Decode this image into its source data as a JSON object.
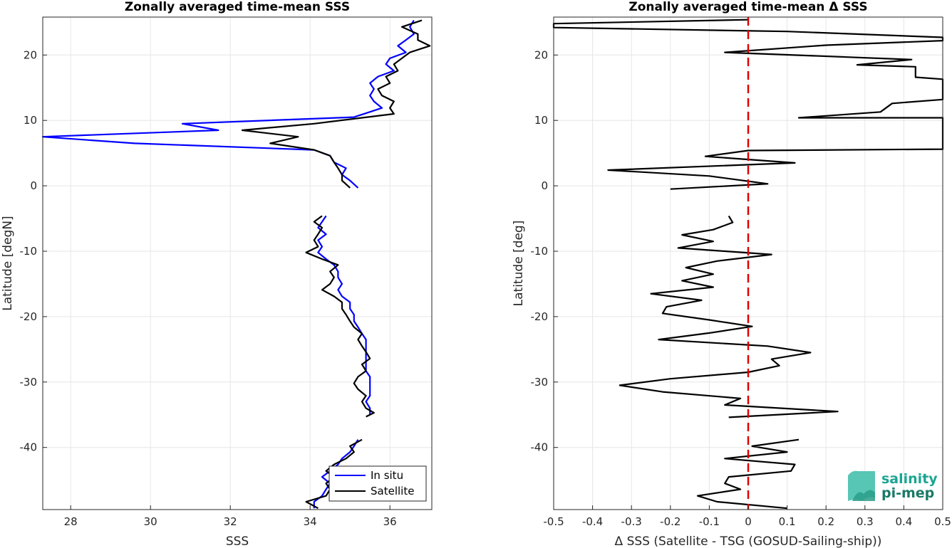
{
  "chart_data": [
    {
      "type": "line",
      "title": "Zonally averaged time-mean SSS",
      "xlabel": "SSS",
      "ylabel": "Latitude [degN]",
      "xlim": [
        27.3,
        37.05
      ],
      "ylim": [
        -49.5,
        25.8
      ],
      "xticks": [
        28,
        30,
        32,
        34,
        36
      ],
      "yticks": [
        -40,
        -30,
        -20,
        -10,
        0,
        10,
        20
      ],
      "grid": true,
      "legend_placement": "bottom-right",
      "series": [
        {
          "name": "In situ",
          "color": "#0000ff",
          "segments": [
            [
              [
                36.6,
                25.3
              ],
              [
                36.5,
                24.3
              ],
              [
                36.6,
                23.2
              ],
              [
                36.4,
                22.3
              ],
              [
                36.2,
                21.4
              ],
              [
                36.4,
                20.4
              ],
              [
                36.0,
                19.5
              ],
              [
                35.9,
                18.6
              ],
              [
                36.1,
                17.6
              ],
              [
                35.7,
                16.7
              ],
              [
                35.5,
                15.7
              ],
              [
                35.6,
                14.8
              ],
              [
                35.5,
                13.8
              ],
              [
                35.6,
                12.9
              ],
              [
                35.8,
                11.9
              ],
              [
                35.1,
                10.5
              ],
              [
                30.8,
                9.5
              ],
              [
                31.7,
                8.5
              ],
              [
                27.3,
                7.5
              ],
              [
                29.6,
                6.5
              ],
              [
                34.1,
                5.5
              ],
              [
                34.5,
                4.6
              ],
              [
                34.6,
                3.6
              ],
              [
                34.9,
                2.7
              ],
              [
                34.8,
                1.7
              ],
              [
                35.0,
                0.8
              ],
              [
                35.2,
                -0.3
              ]
            ],
            [
              [
                34.4,
                -4.6
              ],
              [
                34.3,
                -5.5
              ],
              [
                34.2,
                -6.4
              ],
              [
                34.4,
                -7.4
              ],
              [
                34.2,
                -8.3
              ],
              [
                34.3,
                -9.3
              ],
              [
                34.2,
                -10.2
              ],
              [
                34.4,
                -11.2
              ],
              [
                34.6,
                -12.1
              ],
              [
                34.7,
                -13.1
              ],
              [
                34.7,
                -14.0
              ],
              [
                34.8,
                -15.0
              ],
              [
                34.7,
                -15.9
              ],
              [
                34.8,
                -16.9
              ],
              [
                35.0,
                -17.8
              ],
              [
                35.0,
                -18.8
              ],
              [
                35.1,
                -19.7
              ],
              [
                35.1,
                -20.7
              ],
              [
                35.2,
                -21.6
              ],
              [
                35.3,
                -22.6
              ],
              [
                35.4,
                -23.5
              ],
              [
                35.4,
                -24.5
              ],
              [
                35.4,
                -25.4
              ],
              [
                35.4,
                -26.4
              ],
              [
                35.4,
                -27.3
              ],
              [
                35.4,
                -28.3
              ],
              [
                35.5,
                -29.2
              ],
              [
                35.5,
                -30.2
              ],
              [
                35.5,
                -31.1
              ],
              [
                35.5,
                -32.1
              ],
              [
                35.4,
                -33.0
              ],
              [
                35.5,
                -34.0
              ],
              [
                35.5,
                -35.0
              ]
            ],
            [
              [
                35.2,
                -38.8
              ],
              [
                35.1,
                -39.8
              ],
              [
                35.0,
                -40.7
              ],
              [
                34.8,
                -41.7
              ],
              [
                34.7,
                -42.6
              ],
              [
                34.5,
                -43.6
              ],
              [
                34.3,
                -44.5
              ],
              [
                34.5,
                -45.5
              ],
              [
                34.4,
                -46.4
              ],
              [
                34.3,
                -47.4
              ],
              [
                34.1,
                -48.3
              ],
              [
                34.1,
                -49.3
              ]
            ]
          ]
        },
        {
          "name": "Satellite",
          "color": "#000000",
          "segments": [
            [
              [
                36.8,
                25.3
              ],
              [
                36.3,
                24.3
              ],
              [
                36.7,
                23.2
              ],
              [
                36.7,
                22.3
              ],
              [
                37.0,
                21.4
              ],
              [
                36.5,
                20.4
              ],
              [
                36.3,
                19.5
              ],
              [
                36.1,
                18.6
              ],
              [
                36.2,
                17.6
              ],
              [
                35.9,
                16.7
              ],
              [
                36.0,
                15.7
              ],
              [
                35.7,
                14.8
              ],
              [
                35.8,
                13.8
              ],
              [
                36.1,
                12.9
              ],
              [
                36.0,
                11.9
              ],
              [
                36.1,
                11.0
              ],
              [
                34.1,
                9.5
              ],
              [
                32.3,
                8.5
              ],
              [
                33.7,
                7.5
              ],
              [
                33.0,
                6.5
              ],
              [
                34.1,
                5.5
              ],
              [
                34.5,
                4.6
              ],
              [
                34.6,
                3.6
              ],
              [
                34.7,
                2.7
              ],
              [
                34.8,
                1.7
              ],
              [
                34.8,
                0.8
              ],
              [
                35.0,
                -0.3
              ]
            ],
            [
              [
                34.3,
                -4.6
              ],
              [
                34.1,
                -5.5
              ],
              [
                34.3,
                -6.4
              ],
              [
                34.2,
                -7.4
              ],
              [
                34.1,
                -8.3
              ],
              [
                34.2,
                -9.3
              ],
              [
                33.9,
                -10.2
              ],
              [
                34.3,
                -11.2
              ],
              [
                34.7,
                -12.1
              ],
              [
                34.5,
                -13.1
              ],
              [
                34.6,
                -14.0
              ],
              [
                34.5,
                -15.0
              ],
              [
                34.3,
                -15.9
              ],
              [
                34.6,
                -16.9
              ],
              [
                34.8,
                -17.8
              ],
              [
                34.8,
                -18.8
              ],
              [
                34.9,
                -19.7
              ],
              [
                35.0,
                -20.7
              ],
              [
                35.1,
                -21.6
              ],
              [
                35.3,
                -22.6
              ],
              [
                35.2,
                -23.5
              ],
              [
                35.3,
                -24.5
              ],
              [
                35.4,
                -25.4
              ],
              [
                35.5,
                -26.4
              ],
              [
                35.3,
                -27.3
              ],
              [
                35.4,
                -28.3
              ],
              [
                35.2,
                -29.2
              ],
              [
                35.1,
                -30.2
              ],
              [
                35.2,
                -31.1
              ],
              [
                35.4,
                -32.1
              ],
              [
                35.3,
                -33.0
              ],
              [
                35.4,
                -34.0
              ],
              [
                35.6,
                -34.7
              ],
              [
                35.4,
                -35.3
              ]
            ],
            [
              [
                35.3,
                -38.8
              ],
              [
                35.0,
                -39.8
              ],
              [
                35.1,
                -40.7
              ],
              [
                34.9,
                -41.7
              ],
              [
                34.6,
                -42.6
              ],
              [
                34.4,
                -43.6
              ],
              [
                34.6,
                -44.5
              ],
              [
                34.4,
                -45.5
              ],
              [
                34.5,
                -46.4
              ],
              [
                34.4,
                -47.4
              ],
              [
                33.9,
                -48.3
              ],
              [
                34.2,
                -49.3
              ]
            ]
          ]
        }
      ],
      "legend": [
        "In situ",
        "Satellite"
      ]
    },
    {
      "type": "line",
      "title": "Zonally averaged time-mean Δ SSS",
      "xlabel": "Δ SSS (Satellite - TSG (GOSUD-Sailing-ship))",
      "ylabel": "Latitude [deg]",
      "xlim": [
        -0.5,
        0.5
      ],
      "ylim": [
        -49.5,
        25.8
      ],
      "xticks": [
        -0.5,
        -0.4,
        -0.3,
        -0.2,
        -0.1,
        0,
        0.1,
        0.2,
        0.3,
        0.4,
        0.5
      ],
      "xticklabels": [
        "-0.5",
        "-0.4",
        "-0.3",
        "-0.2",
        "-0.1",
        "0",
        "0.1",
        "0.2",
        "0.3",
        "0.4",
        "0.5"
      ],
      "yticks": [
        -40,
        -30,
        -20,
        -10,
        0,
        10,
        20
      ],
      "grid": true,
      "reference_line": {
        "x": 0,
        "color": "#e00000",
        "style": "dashed"
      },
      "series": [
        {
          "color": "#000000",
          "segments": [
            [
              [
                0.0,
                25.4
              ],
              [
                -0.5,
                24.8
              ],
              [
                -0.5,
                24.2
              ],
              [
                0.1,
                23.6
              ],
              [
                0.5,
                22.7
              ],
              [
                0.5,
                22.2
              ],
              [
                0.2,
                21.5
              ],
              [
                -0.06,
                20.4
              ],
              [
                0.42,
                19.3
              ],
              [
                0.28,
                18.5
              ],
              [
                0.43,
                18.2
              ],
              [
                0.43,
                16.6
              ],
              [
                0.5,
                16.3
              ],
              [
                0.5,
                13.2
              ],
              [
                0.37,
                12.6
              ],
              [
                0.34,
                11.3
              ],
              [
                0.13,
                10.4
              ],
              [
                0.5,
                10.4
              ],
              [
                0.5,
                8.0
              ],
              [
                0.5,
                5.6
              ],
              [
                0.0,
                5.4
              ],
              [
                -0.11,
                4.5
              ],
              [
                0.12,
                3.5
              ],
              [
                -0.36,
                2.4
              ],
              [
                -0.1,
                1.5
              ],
              [
                0.05,
                0.3
              ],
              [
                -0.2,
                -0.5
              ]
            ],
            [
              [
                -0.05,
                -4.6
              ],
              [
                -0.04,
                -5.6
              ],
              [
                -0.09,
                -6.7
              ],
              [
                -0.17,
                -7.5
              ],
              [
                -0.09,
                -8.5
              ],
              [
                -0.18,
                -9.5
              ],
              [
                0.06,
                -10.5
              ],
              [
                -0.08,
                -11.5
              ],
              [
                -0.16,
                -12.5
              ],
              [
                -0.09,
                -13.5
              ],
              [
                -0.17,
                -14.5
              ],
              [
                -0.09,
                -15.5
              ],
              [
                -0.25,
                -16.5
              ],
              [
                -0.12,
                -17.5
              ],
              [
                -0.21,
                -18.5
              ],
              [
                -0.22,
                -19.5
              ],
              [
                -0.1,
                -20.5
              ],
              [
                0.01,
                -21.5
              ],
              [
                -0.1,
                -22.5
              ],
              [
                -0.23,
                -23.5
              ],
              [
                0.05,
                -24.5
              ],
              [
                0.16,
                -25.5
              ],
              [
                0.06,
                -26.5
              ],
              [
                0.08,
                -27.5
              ],
              [
                0.0,
                -28.5
              ],
              [
                -0.2,
                -29.5
              ],
              [
                -0.33,
                -30.5
              ],
              [
                -0.22,
                -31.5
              ],
              [
                -0.02,
                -32.5
              ],
              [
                -0.06,
                -33.5
              ],
              [
                0.23,
                -34.5
              ],
              [
                -0.05,
                -35.4
              ]
            ],
            [
              [
                0.13,
                -38.8
              ],
              [
                0.01,
                -39.8
              ],
              [
                0.1,
                -40.7
              ],
              [
                -0.06,
                -41.7
              ],
              [
                0.12,
                -42.6
              ],
              [
                0.11,
                -43.6
              ],
              [
                -0.05,
                -44.5
              ],
              [
                -0.06,
                -45.5
              ],
              [
                -0.02,
                -46.4
              ],
              [
                -0.13,
                -47.4
              ],
              [
                -0.08,
                -48.3
              ],
              [
                0.1,
                -49.3
              ]
            ]
          ]
        }
      ]
    }
  ],
  "logo": {
    "line1": "salinity",
    "line2": "pi-mep"
  }
}
